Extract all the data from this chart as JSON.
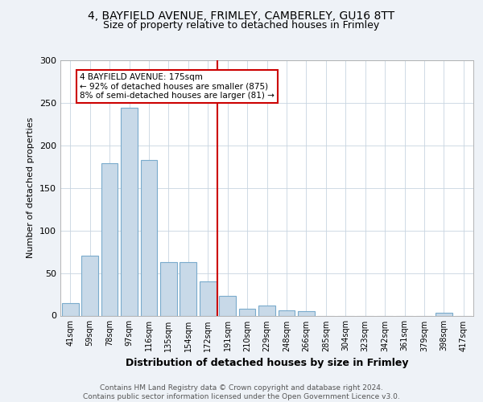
{
  "title1": "4, BAYFIELD AVENUE, FRIMLEY, CAMBERLEY, GU16 8TT",
  "title2": "Size of property relative to detached houses in Frimley",
  "xlabel": "Distribution of detached houses by size in Frimley",
  "ylabel": "Number of detached properties",
  "categories": [
    "41sqm",
    "59sqm",
    "78sqm",
    "97sqm",
    "116sqm",
    "135sqm",
    "154sqm",
    "172sqm",
    "191sqm",
    "210sqm",
    "229sqm",
    "248sqm",
    "266sqm",
    "285sqm",
    "304sqm",
    "323sqm",
    "342sqm",
    "361sqm",
    "379sqm",
    "398sqm",
    "417sqm"
  ],
  "values": [
    15,
    70,
    179,
    244,
    183,
    63,
    63,
    40,
    23,
    8,
    12,
    6,
    5,
    0,
    0,
    0,
    0,
    0,
    0,
    3,
    0
  ],
  "bar_color": "#c8d9e8",
  "bar_edge_color": "#7aabcc",
  "vline_x": 7.5,
  "vline_color": "#cc0000",
  "annotation_text": "4 BAYFIELD AVENUE: 175sqm\n← 92% of detached houses are smaller (875)\n8% of semi-detached houses are larger (81) →",
  "annotation_box_color": "#ffffff",
  "annotation_box_edge": "#cc0000",
  "ylim": [
    0,
    300
  ],
  "yticks": [
    0,
    50,
    100,
    150,
    200,
    250,
    300
  ],
  "footer": "Contains HM Land Registry data © Crown copyright and database right 2024.\nContains public sector information licensed under the Open Government Licence v3.0.",
  "background_color": "#eef2f7",
  "plot_background": "#ffffff",
  "grid_color": "#c8d4e0"
}
